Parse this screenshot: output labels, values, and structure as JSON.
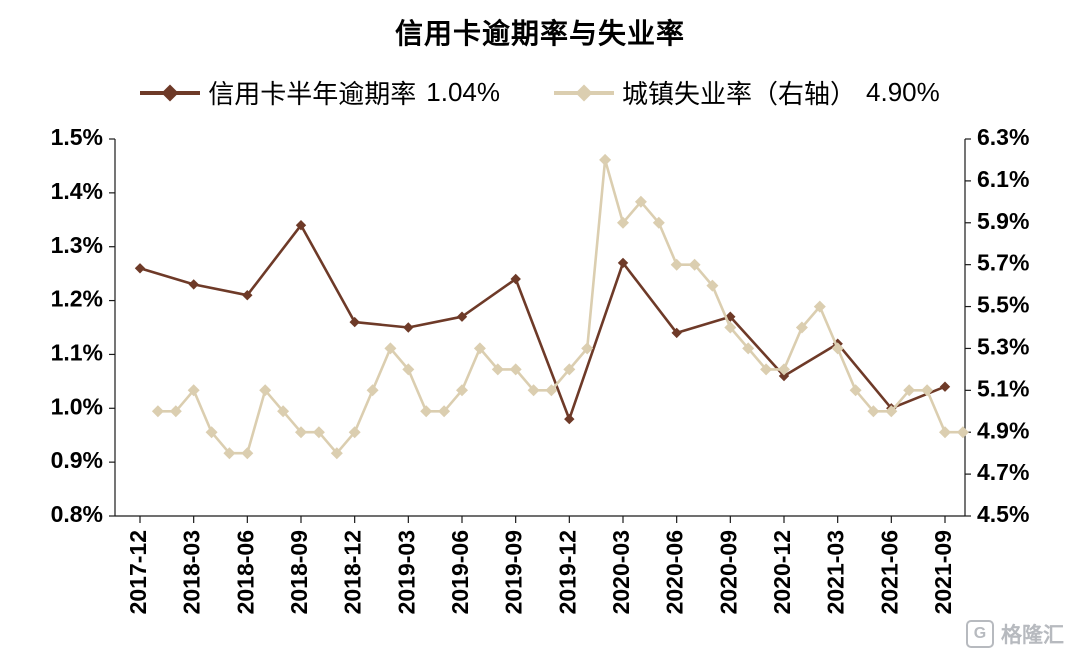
{
  "watermark": {
    "logo_letter": "G",
    "brand": "格隆汇"
  },
  "chart_data": {
    "type": "line",
    "title": "信用卡逾期率与失业率",
    "grid": false,
    "legend_position": "top",
    "x_base": "2017-12",
    "x_tick_labels": [
      "2017-12",
      "2018-03",
      "2018-06",
      "2018-09",
      "2018-12",
      "2019-03",
      "2019-06",
      "2019-09",
      "2019-12",
      "2020-03",
      "2020-06",
      "2020-09",
      "2020-12",
      "2021-03",
      "2021-06",
      "2021-09"
    ],
    "left_axis": {
      "min": 0.8,
      "max": 1.5,
      "tick_step": 0.1,
      "tick_labels": [
        "0.8%",
        "0.9%",
        "1.0%",
        "1.1%",
        "1.2%",
        "1.3%",
        "1.4%",
        "1.5%"
      ]
    },
    "right_axis": {
      "min": 4.5,
      "max": 6.3,
      "tick_step": 0.2,
      "tick_labels": [
        "4.5%",
        "4.7%",
        "4.9%",
        "5.1%",
        "5.3%",
        "5.5%",
        "5.7%",
        "5.9%",
        "6.1%",
        "6.3%"
      ]
    },
    "series": [
      {
        "name": "信用卡半年逾期率",
        "value_label": "1.04%",
        "axis": "left",
        "color": "#6e3a28",
        "marker": "diamond",
        "start": "2017-12",
        "interval_months": 3,
        "values": [
          1.26,
          1.23,
          1.21,
          1.34,
          1.16,
          1.15,
          1.17,
          1.24,
          0.98,
          1.27,
          1.14,
          1.17,
          1.06,
          1.12,
          1.0,
          1.04
        ]
      },
      {
        "name": "城镇失业率（右轴）",
        "value_label": "4.90%",
        "axis": "right",
        "color": "#dbceb0",
        "marker": "diamond",
        "start": "2018-01",
        "interval_months": 1,
        "values": [
          5.0,
          5.0,
          5.1,
          4.9,
          4.8,
          4.8,
          5.1,
          5.0,
          4.9,
          4.9,
          4.8,
          4.9,
          5.1,
          5.3,
          5.2,
          5.0,
          5.0,
          5.1,
          5.3,
          5.2,
          5.2,
          5.1,
          5.1,
          5.2,
          5.3,
          6.2,
          5.9,
          6.0,
          5.9,
          5.7,
          5.7,
          5.6,
          5.4,
          5.3,
          5.2,
          5.2,
          5.4,
          5.5,
          5.3,
          5.1,
          5.0,
          5.0,
          5.1,
          5.1,
          4.9,
          4.9
        ]
      }
    ]
  }
}
